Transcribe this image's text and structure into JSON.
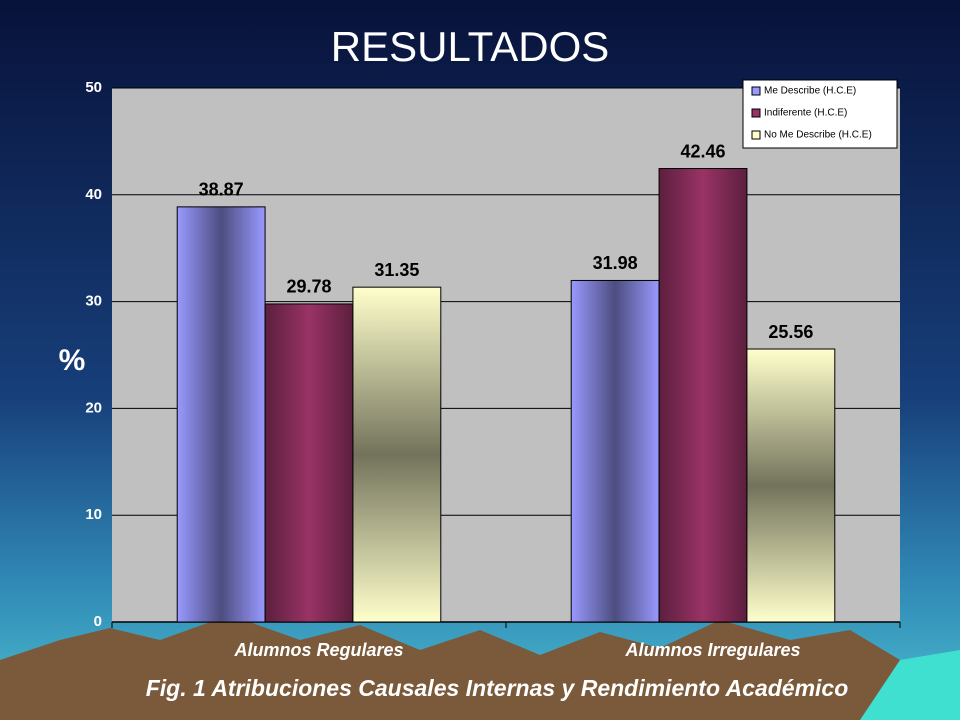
{
  "chart_data": {
    "type": "bar",
    "title": "RESULTADOS",
    "y_label": "%",
    "caption": "Fig. 1 Atribuciones Causales Internas y Rendimiento Académico",
    "categories": [
      "Alumnos Regulares",
      "Alumnos Irregulares"
    ],
    "series": [
      {
        "name": "Me Describe (H.C.E)",
        "color": "#9999ff",
        "values": [
          38.87,
          31.98
        ]
      },
      {
        "name": "Indiferente (H.C.E)",
        "color": "#993366",
        "values": [
          29.78,
          42.46
        ]
      },
      {
        "name": "No Me Describe (H.C.E)",
        "color": "#ffffcc",
        "values": [
          31.35,
          25.56
        ]
      }
    ],
    "ylim": [
      0,
      50
    ],
    "yticks": [
      0,
      10,
      20,
      30,
      40,
      50
    ],
    "grid": true,
    "legend": "upper right"
  }
}
